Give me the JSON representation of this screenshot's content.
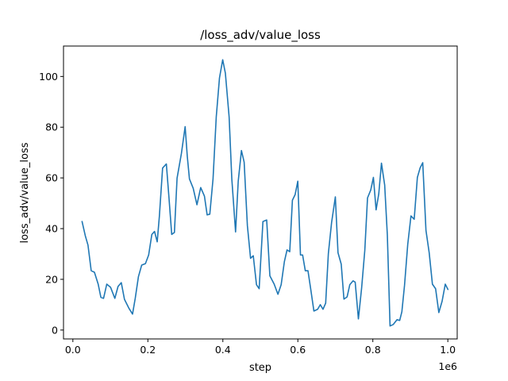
{
  "chart_data": {
    "type": "line",
    "title": "/loss_adv/value_loss",
    "xlabel": "step",
    "ylabel": "loss_adv/value_loss",
    "x_offset_label": "1e6",
    "x_ticks": [
      0.0,
      0.2,
      0.4,
      0.6,
      0.8,
      1.0
    ],
    "x_tick_labels": [
      "0.0",
      "0.2",
      "0.4",
      "0.6",
      "0.8",
      "1.0"
    ],
    "y_ticks": [
      0,
      20,
      40,
      60,
      80,
      100
    ],
    "y_tick_labels": [
      "0",
      "20",
      "40",
      "60",
      "80",
      "100"
    ],
    "xlim": [
      -0.025,
      1.025
    ],
    "ylim": [
      -3.5,
      112
    ],
    "grid": false,
    "legend": "none",
    "series": [
      {
        "color": "#1f77b4",
        "x": [
          0.0245,
          0.0331,
          0.0403,
          0.0489,
          0.0575,
          0.0675,
          0.0747,
          0.0818,
          0.0904,
          0.1004,
          0.1119,
          0.1205,
          0.1291,
          0.1376,
          0.1491,
          0.1591,
          0.1663,
          0.1749,
          0.1835,
          0.1935,
          0.2021,
          0.2106,
          0.2178,
          0.2249,
          0.2307,
          0.2393,
          0.2493,
          0.2565,
          0.2636,
          0.2708,
          0.2779,
          0.2894,
          0.2994,
          0.3051,
          0.3109,
          0.3209,
          0.3309,
          0.3409,
          0.3509,
          0.3581,
          0.3652,
          0.3738,
          0.3824,
          0.391,
          0.3996,
          0.4067,
          0.4167,
          0.4239,
          0.4339,
          0.441,
          0.4496,
          0.4568,
          0.4654,
          0.4739,
          0.4811,
          0.4897,
          0.4968,
          0.5069,
          0.5169,
          0.5254,
          0.5369,
          0.5469,
          0.5555,
          0.5641,
          0.5712,
          0.5784,
          0.5855,
          0.5927,
          0.5999,
          0.607,
          0.6127,
          0.6199,
          0.627,
          0.6342,
          0.6428,
          0.6528,
          0.6599,
          0.6671,
          0.6742,
          0.6814,
          0.69,
          0.7,
          0.7071,
          0.7157,
          0.7229,
          0.7314,
          0.7386,
          0.7472,
          0.7529,
          0.7615,
          0.7701,
          0.7786,
          0.7858,
          0.7944,
          0.8015,
          0.8087,
          0.8158,
          0.823,
          0.8316,
          0.8387,
          0.8459,
          0.8545,
          0.8645,
          0.8716,
          0.8774,
          0.8845,
          0.8931,
          0.9017,
          0.9103,
          0.9188,
          0.926,
          0.9331,
          0.9417,
          0.9503,
          0.9589,
          0.9674,
          0.976,
          0.9846,
          0.9932,
          1.0003
        ],
        "y": [
          42.8,
          37.2,
          33.5,
          23.4,
          22.8,
          18.1,
          12.9,
          12.5,
          18.1,
          16.9,
          12.5,
          17.2,
          18.7,
          12.1,
          8.7,
          6.3,
          12.5,
          21.1,
          25.6,
          26.2,
          29.6,
          37.7,
          38.9,
          34.8,
          44.9,
          63.9,
          65.5,
          51.8,
          37.7,
          38.5,
          59.9,
          69.6,
          80.2,
          68.6,
          59.6,
          55.9,
          49.4,
          56.2,
          52.8,
          45.4,
          45.7,
          59.6,
          84.1,
          99.4,
          106.6,
          101.3,
          84.1,
          59.6,
          38.7,
          58.7,
          70.8,
          66.2,
          41.2,
          28.3,
          29.3,
          17.9,
          16.3,
          42.8,
          43.4,
          21.4,
          18.1,
          14.1,
          17.9,
          27.0,
          31.6,
          30.9,
          51.2,
          53.4,
          58.7,
          29.6,
          29.6,
          23.4,
          23.4,
          16.3,
          7.5,
          8.2,
          10.0,
          8.2,
          10.6,
          30.2,
          42.4,
          52.5,
          30.5,
          26.0,
          12.2,
          13.1,
          17.9,
          19.4,
          18.9,
          4.4,
          16.6,
          31.5,
          52.1,
          55.2,
          60.2,
          47.4,
          53.7,
          65.8,
          57.2,
          37.4,
          1.6,
          2.2,
          4.1,
          3.8,
          7.2,
          17.6,
          33.8,
          45.0,
          43.7,
          60.2,
          63.9,
          66.0,
          39.3,
          30.5,
          18.1,
          16.3,
          6.9,
          11.3,
          18.1,
          16.0
        ]
      }
    ]
  }
}
